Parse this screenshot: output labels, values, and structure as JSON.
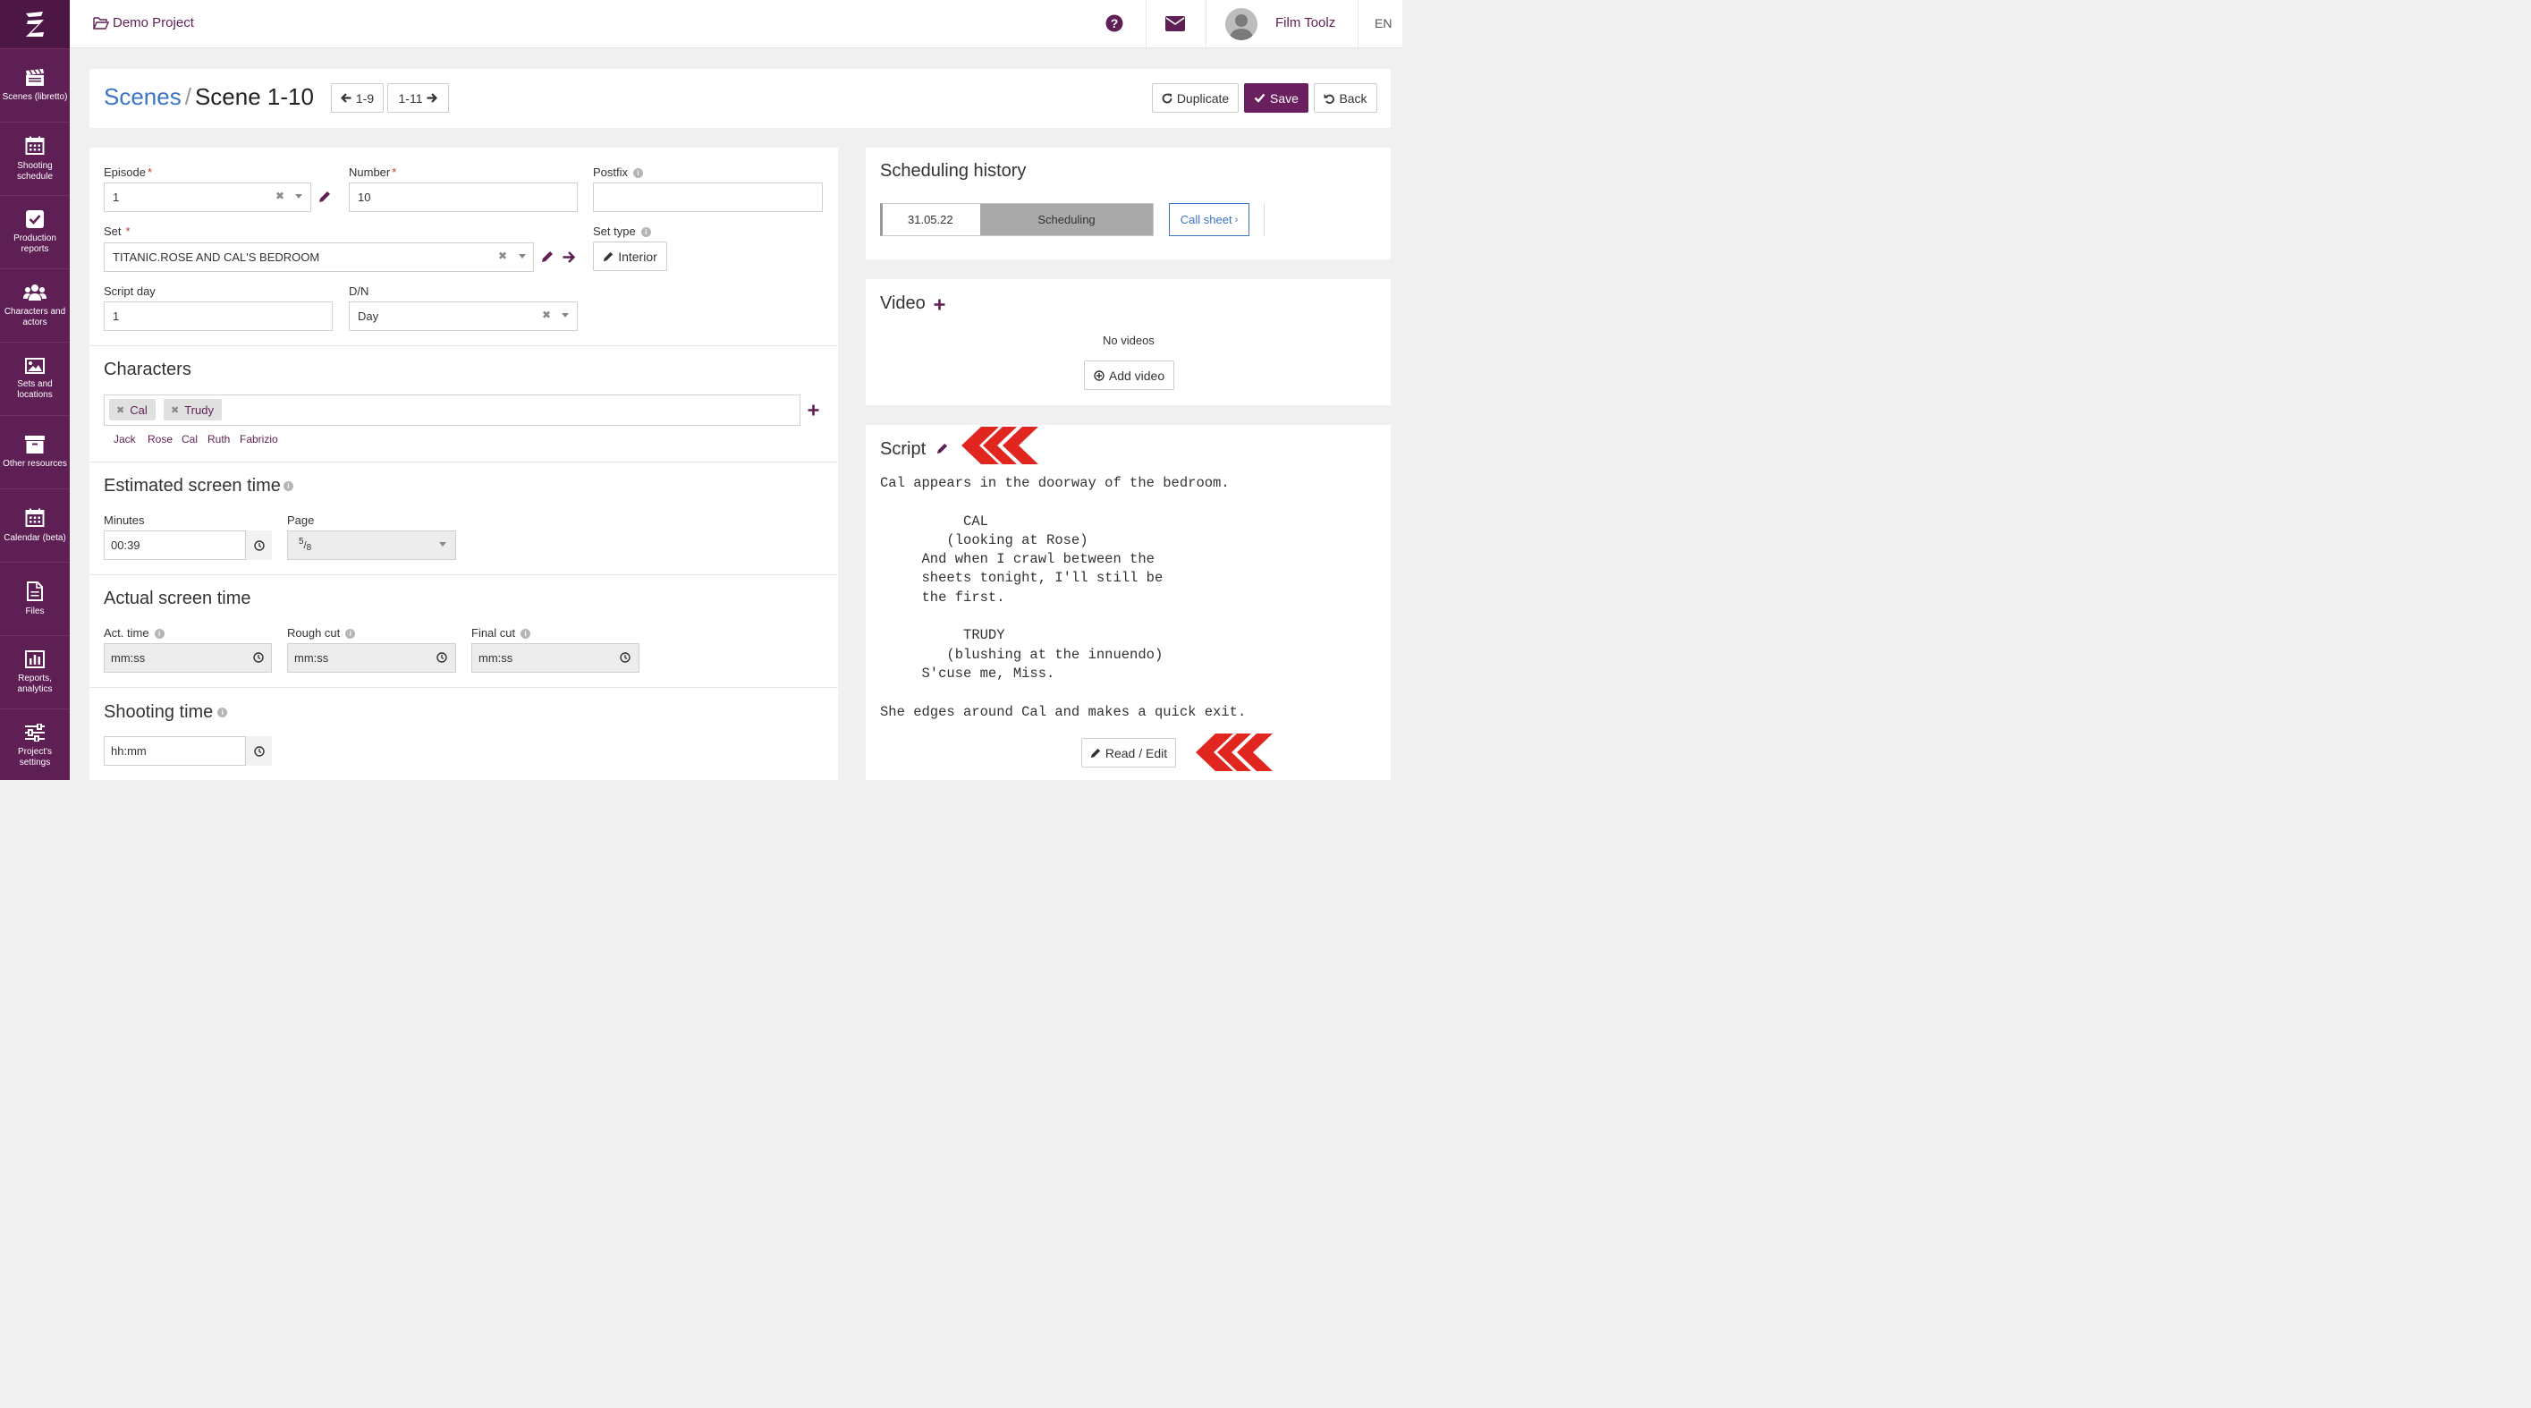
{
  "sidebar": {
    "items": [
      {
        "label": "Scenes (libretto)",
        "icon": "clapperboard-icon"
      },
      {
        "label": "Shooting schedule",
        "icon": "calendar-icon"
      },
      {
        "label": "Production reports",
        "icon": "check-square-icon"
      },
      {
        "label": "Characters and actors",
        "icon": "users-icon"
      },
      {
        "label": "Sets and locations",
        "icon": "image-icon"
      },
      {
        "label": "Other resources",
        "icon": "archive-icon"
      },
      {
        "label": "Calendar (beta)",
        "icon": "calendar-icon"
      },
      {
        "label": "Files",
        "icon": "file-icon"
      },
      {
        "label": "Reports, analytics",
        "icon": "bar-chart-icon"
      },
      {
        "label": "Project's settings",
        "icon": "sliders-icon"
      }
    ]
  },
  "topbar": {
    "project": "Demo Project",
    "user": "Film Toolz",
    "lang": "EN"
  },
  "header": {
    "crumb_link": "Scenes",
    "crumb_sep": "/",
    "crumb_current": "Scene 1-10",
    "prev_label": "1-9",
    "next_label": "1-11",
    "duplicate_label": "Duplicate",
    "save_label": "Save",
    "back_label": "Back"
  },
  "form": {
    "episode_label": "Episode",
    "episode_value": "1",
    "number_label": "Number",
    "number_value": "10",
    "postfix_label": "Postfix",
    "set_label": "Set",
    "set_value": "TITANIC.ROSE AND CAL'S BEDROOM",
    "settype_label": "Set type",
    "settype_value": "Interior",
    "scriptday_label": "Script day",
    "scriptday_value": "1",
    "dn_label": "D/N",
    "dn_value": "Day"
  },
  "characters": {
    "title": "Characters",
    "tags": [
      "Cal",
      "Trudy"
    ],
    "suggestions": [
      "Jack",
      "Rose",
      "Cal",
      "Ruth",
      "Fabrizio"
    ]
  },
  "estimated": {
    "title": "Estimated screen time",
    "minutes_label": "Minutes",
    "minutes_value": "00:39",
    "page_label": "Page",
    "page_num": "5",
    "page_den": "8"
  },
  "actual": {
    "title": "Actual screen time",
    "act_label": "Act. time",
    "rough_label": "Rough cut",
    "final_label": "Final cut",
    "placeholder": "mm:ss"
  },
  "shooting": {
    "title": "Shooting time",
    "placeholder": "hh:mm"
  },
  "history": {
    "title": "Scheduling history",
    "date": "31.05.22",
    "status": "Scheduling",
    "callsheet": "Call sheet"
  },
  "video": {
    "title": "Video",
    "empty": "No videos",
    "add_label": "Add video"
  },
  "script": {
    "title": "Script",
    "text": "Cal appears in the doorway of the bedroom.\n\n          CAL\n        (looking at Rose)\n     And when I crawl between the\n     sheets tonight, I'll still be\n     the first.\n\n          TRUDY\n        (blushing at the innuendo)\n     S'cuse me, Miss.\n\nShe edges around Cal and makes a quick exit.",
    "read_edit_label": "Read / Edit"
  },
  "colors": {
    "brand": "#5e1f55",
    "link": "#3a73c9",
    "arrow_red": "#e0261f"
  }
}
